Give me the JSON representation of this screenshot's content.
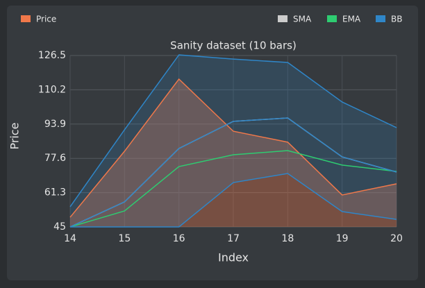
{
  "chart_data": {
    "type": "line",
    "title": "Sanity dataset (10 bars)",
    "xlabel": "Index",
    "ylabel": "Price",
    "x": [
      14,
      15,
      16,
      17,
      18,
      19,
      20
    ],
    "xlim": [
      14,
      20
    ],
    "xticks": [
      14,
      15,
      16,
      17,
      18,
      19,
      20
    ],
    "ylim": [
      45,
      126.5
    ],
    "yticks": [
      45,
      61.3,
      77.6,
      93.9,
      110.2,
      126.5
    ],
    "grid": true,
    "series": [
      {
        "name": "Price",
        "color": "#f0784a",
        "values": [
          49.6,
          81,
          115.3,
          90.5,
          85.3,
          60.2,
          65.5
        ]
      },
      {
        "name": "SMA",
        "color": "#cccccc",
        "values": [
          45,
          56.9,
          82.3,
          95.2,
          96.8,
          78.3,
          71.1
        ]
      },
      {
        "name": "EMA",
        "color": "#2ecc71",
        "values": [
          45,
          52.6,
          73.7,
          79.3,
          81.3,
          74.4,
          71.4
        ]
      },
      {
        "name": "BB",
        "color": "#2f86c8",
        "upper": [
          54.6,
          91.2,
          126.8,
          124.8,
          123.2,
          104.4,
          92.2
        ],
        "middle": [
          45,
          56.9,
          82.3,
          95.2,
          96.8,
          78.3,
          71.1
        ],
        "lower": [
          45,
          45,
          45,
          66.1,
          70.4,
          52.3,
          48.6
        ]
      }
    ]
  }
}
